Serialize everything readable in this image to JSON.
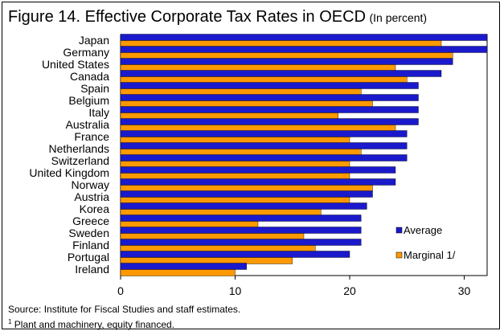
{
  "chart_data": {
    "type": "bar",
    "orientation": "horizontal",
    "title": "Figure 14. Effective Corporate Tax Rates in OECD",
    "subtitle": "(In percent)",
    "categories": [
      "Japan",
      "Germany",
      "United States",
      "Canada",
      "Spain",
      "Belgium",
      "Italy",
      "Australia",
      "France",
      "Netherlands",
      "Switzerland",
      "United Kingdom",
      "Norway",
      "Austria",
      "Korea",
      "Greece",
      "Sweden",
      "Finland",
      "Portugal",
      "Ireland"
    ],
    "series": [
      {
        "name": "Average",
        "color": "#1a1acc",
        "values": [
          32,
          32,
          29,
          28,
          26,
          26,
          26,
          26,
          25,
          25,
          25,
          24,
          24,
          22,
          21.5,
          21,
          21,
          21,
          20,
          11
        ]
      },
      {
        "name": "Marginal 1/",
        "color": "#ff9900",
        "values": [
          28,
          29,
          24,
          25,
          21,
          22,
          19,
          24,
          20,
          21,
          20,
          20,
          22,
          20,
          17.5,
          12,
          16,
          17,
          15,
          10
        ]
      }
    ],
    "xlim": [
      0,
      32
    ],
    "xticks": [
      0,
      10,
      20,
      30
    ],
    "grid": false,
    "legend_position": "lower-right"
  },
  "footer": {
    "source": "Source: Institute for Fiscal Studies and staff estimates.",
    "footnote_marker": "1",
    "footnote": " Plant and machinery, equity financed."
  }
}
